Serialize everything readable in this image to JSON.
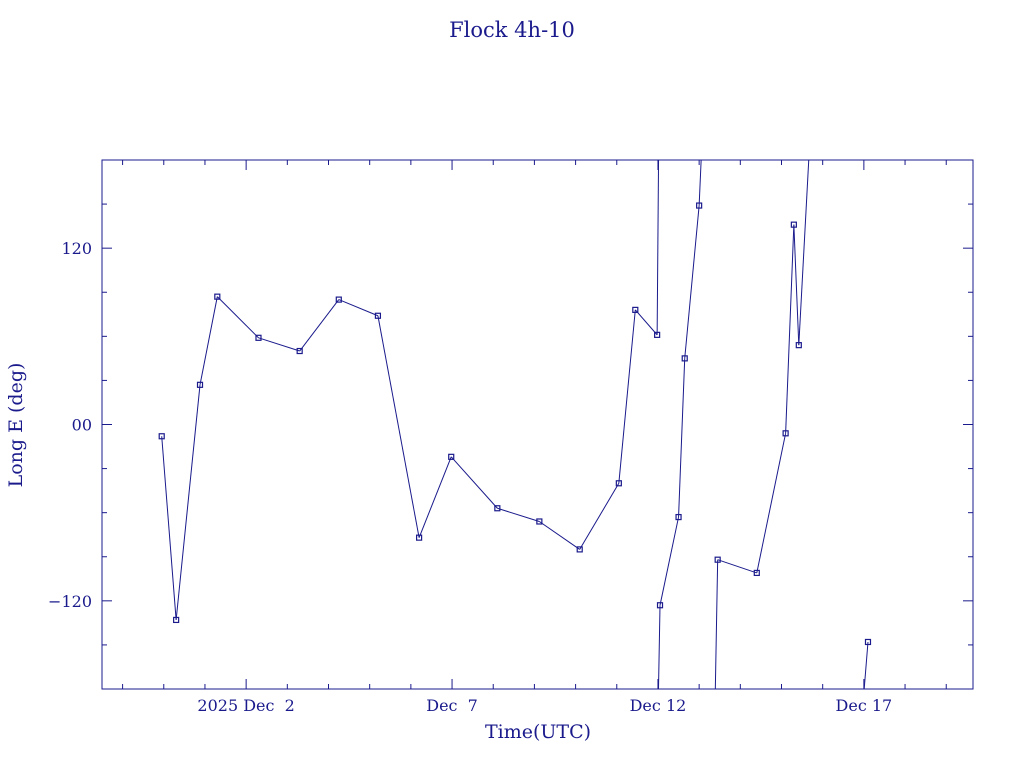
{
  "chart_data": {
    "type": "line",
    "title": "Flock 4h-10",
    "xlabel": "Time(UTC)",
    "ylabel": "Long E (deg)",
    "ylim": [
      -180,
      180
    ],
    "yticks": [
      -120,
      0,
      120
    ],
    "ytick_labels": [
      "−120",
      "00",
      "120"
    ],
    "xlim": [
      -3.5,
      17.65
    ],
    "xticks": [
      {
        "value": 0,
        "label": "2025 Dec  2"
      },
      {
        "value": 5,
        "label": "Dec  7"
      },
      {
        "value": 10,
        "label": "Dec 12"
      },
      {
        "value": 15,
        "label": "Dec 17"
      }
    ],
    "x_unit": "days from 2025 Dec 2 00:00 UTC",
    "series": [
      {
        "color": "#1a1a8c",
        "x": [
          -2.05,
          -1.7,
          -1.12,
          -0.7,
          0.3,
          1.3,
          2.25,
          3.2,
          4.2,
          4.98,
          6.1,
          7.12,
          8.1,
          9.05,
          9.45,
          9.98
        ],
        "y": [
          -8,
          -133,
          27,
          87,
          59,
          50,
          85,
          74,
          -77,
          -22,
          -57,
          -66,
          -85,
          -40,
          78,
          61
        ]
      },
      {
        "color": "#1a1a8c",
        "x": [
          10.05,
          10.5,
          10.65,
          11.0
        ],
        "y": [
          -123,
          -63,
          45,
          149
        ]
      },
      {
        "color": "#1a1a8c",
        "x": [
          11.45,
          12.4,
          13.1,
          13.3,
          13.42
        ],
        "y": [
          -92,
          -101,
          -6,
          136,
          54
        ]
      },
      {
        "color": "#1a1a8c",
        "x": [
          15.1
        ],
        "y": [
          -148
        ]
      }
    ]
  }
}
